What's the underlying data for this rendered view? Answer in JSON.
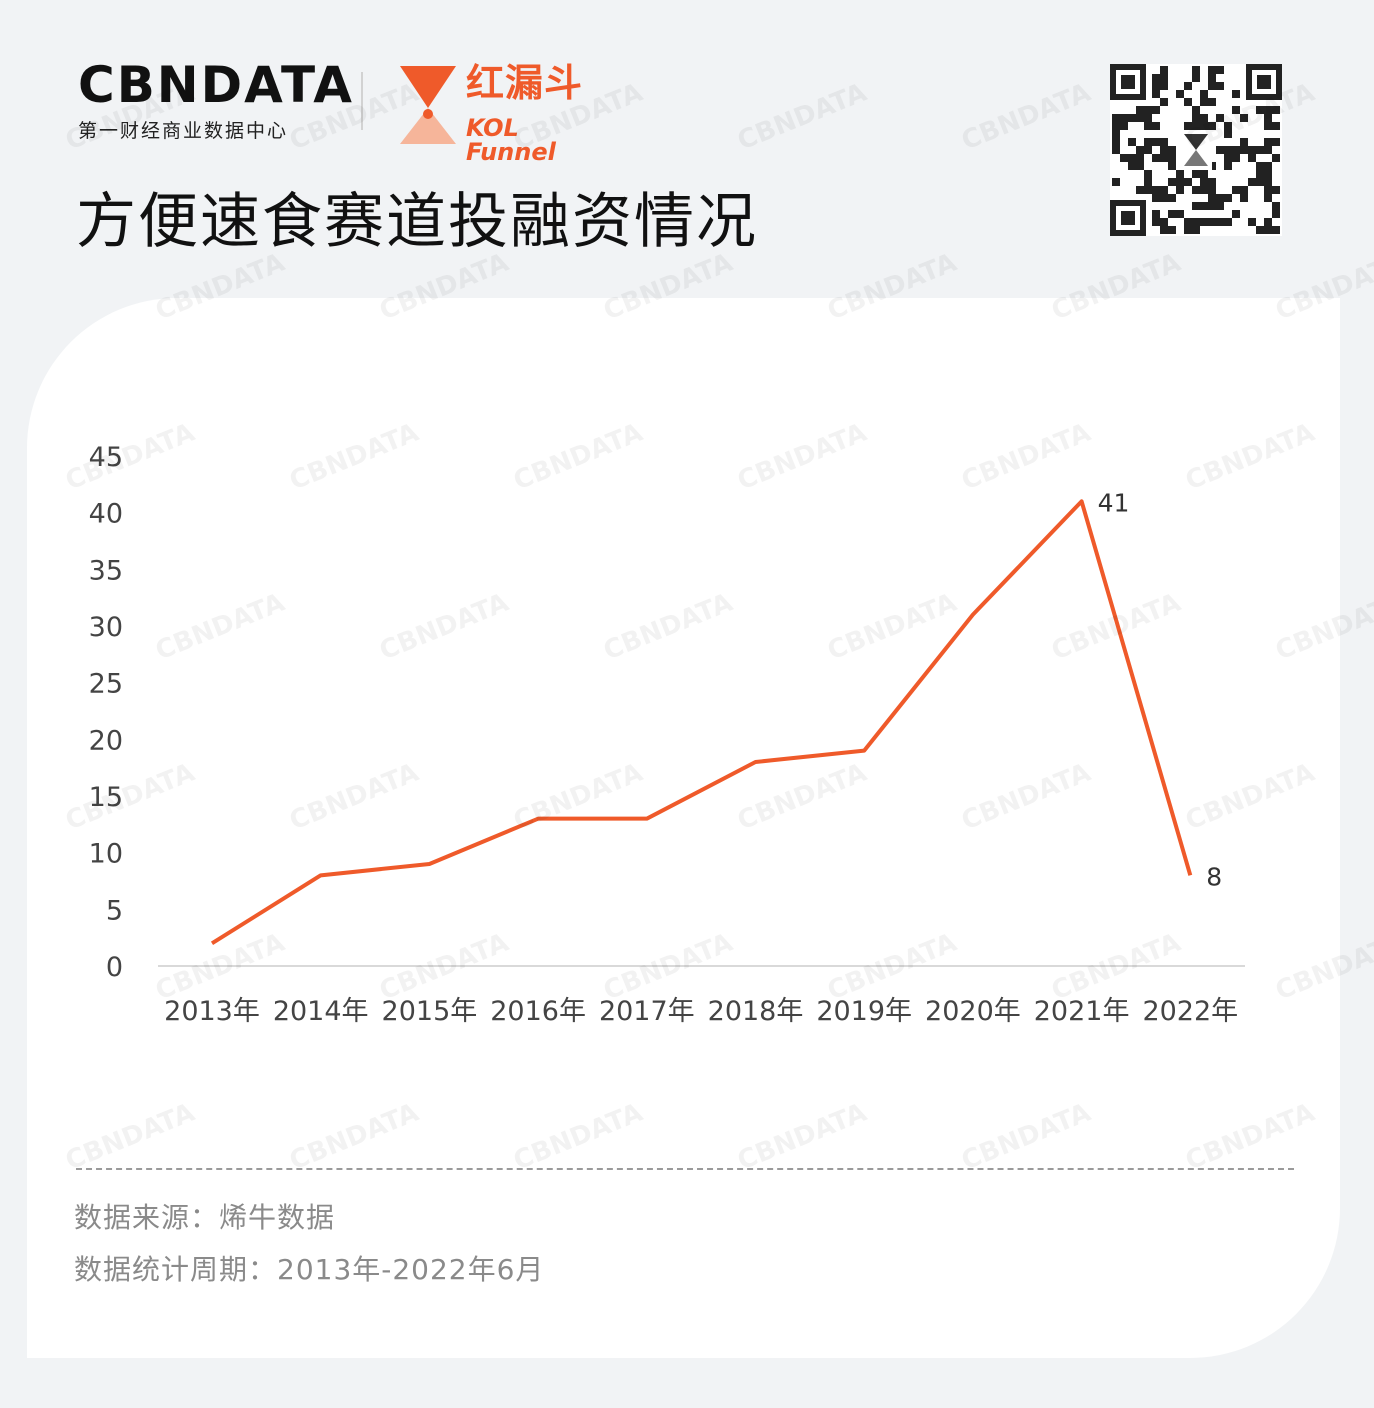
{
  "logos": {
    "cbn_word": "CBNDATA",
    "cbn_sub": "第一财经商业数据中心",
    "kol_cn": "红漏斗",
    "kol_en": "KOL Funnel"
  },
  "title": "方便速食赛道投融资情况",
  "chart_data": {
    "type": "line",
    "categories": [
      "2013年",
      "2014年",
      "2015年",
      "2016年",
      "2017年",
      "2018年",
      "2019年",
      "2020年",
      "2021年",
      "2022年"
    ],
    "values": [
      2,
      8,
      9,
      13,
      13,
      18,
      19,
      31,
      41,
      8
    ],
    "ylim": [
      0,
      45
    ],
    "yticks": [
      "0",
      "5",
      "10",
      "15",
      "20",
      "25",
      "30",
      "35",
      "40",
      "45"
    ],
    "data_labels": [
      {
        "index": 8,
        "text": "41"
      },
      {
        "index": 9,
        "text": "8"
      }
    ],
    "line_color": "#ef5a2a",
    "grid": false
  },
  "footer": {
    "source": "数据来源：烯牛数据",
    "period": "数据统计周期：2013年-2022年6月"
  },
  "colors": {
    "accent": "#ef5a2a",
    "background": "#f1f3f5",
    "card": "#ffffff"
  }
}
